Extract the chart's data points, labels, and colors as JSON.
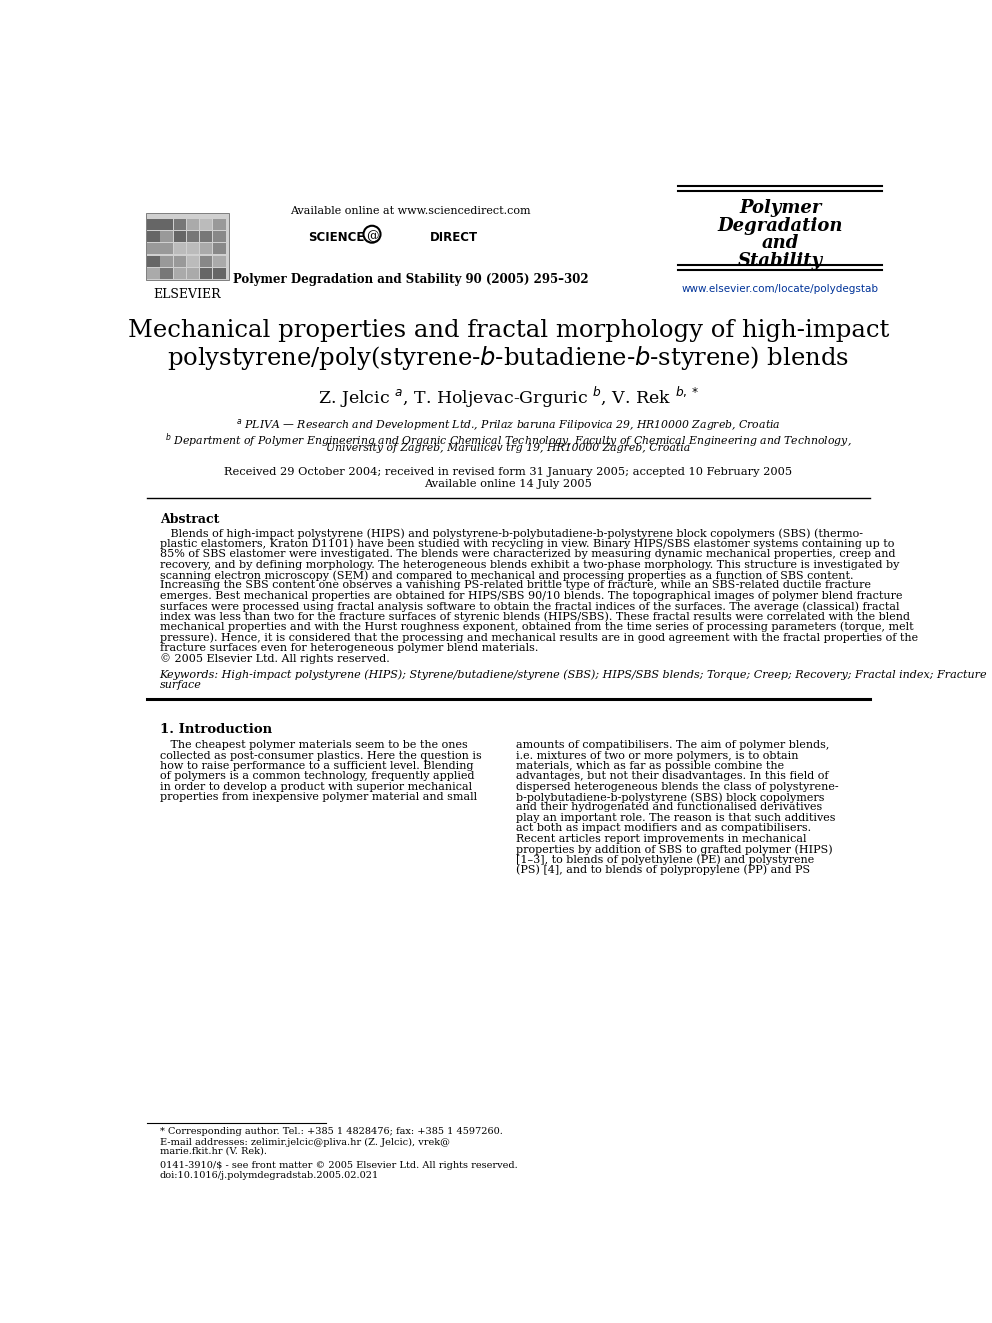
{
  "bg_color": "#ffffff",
  "header": {
    "available_online": "Available online at www.sciencedirect.com",
    "journal_line": "Polymer Degradation and Stability 90 (2005) 295–302",
    "journal_name_line1": "Polymer",
    "journal_name_line2": "Degradation",
    "journal_name_line3": "and",
    "journal_name_line4": "Stability",
    "journal_url": "www.elsevier.com/locate/polydegstab"
  },
  "title_line1": "Mechanical properties and fractal morphology of high-impact",
  "title_line2": "polystyrene/poly(styrene-b-butadiene-b-styrene) blends",
  "authors": "Z. Jelcic $^a$, T. Holjevac-Grguric $^b$, V. Rek $^{b,*}$",
  "affil_a": "$^a$ PLIVA — Research and Development Ltd., Prilaz baruna Filipovica 29, HR10000 Zagreb, Croatia",
  "affil_b_line1": "$^b$ Department of Polymer Engineering and Organic Chemical Technology, Faculty of Chemical Engineering and Technology,",
  "affil_b_line2": "University of Zagreb, Marulicev trg 19, HR10000 Zagreb, Croatia",
  "dates_line1": "Received 29 October 2004; received in revised form 31 January 2005; accepted 10 February 2005",
  "dates_line2": "Available online 14 July 2005",
  "abstract_title": "Abstract",
  "abstract_text": "   Blends of high-impact polystyrene (HIPS) and polystyrene-b-polybutadiene-b-polystyrene block copolymers (SBS) (thermo-\nplastic elastomers, Kraton D1101) have been studied with recycling in view. Binary HIPS/SBS elastomer systems containing up to\n85% of SBS elastomer were investigated. The blends were characterized by measuring dynamic mechanical properties, creep and\nrecovery, and by defining morphology. The heterogeneous blends exhibit a two-phase morphology. This structure is investigated by\nscanning electron microscopy (SEM) and compared to mechanical and processing properties as a function of SBS content.\nIncreasing the SBS content one observes a vanishing PS-related brittle type of fracture, while an SBS-related ductile fracture\nemerges. Best mechanical properties are obtained for HIPS/SBS 90/10 blends. The topographical images of polymer blend fracture\nsurfaces were processed using fractal analysis software to obtain the fractal indices of the surfaces. The average (classical) fractal\nindex was less than two for the fracture surfaces of styrenic blends (HIPS/SBS). These fractal results were correlated with the blend\nmechanical properties and with the Hurst roughness exponent, obtained from the time series of processing parameters (torque, melt\npressure). Hence, it is considered that the processing and mechanical results are in good agreement with the fractal properties of the\nfracture surfaces even for heterogeneous polymer blend materials.\n© 2005 Elsevier Ltd. All rights reserved.",
  "keywords_label": "Keywords: ",
  "keywords_text": "High-impact polystyrene (HIPS); Styrene/butadiene/styrene (SBS); HIPS/SBS blends; Torque; Creep; Recovery; Fractal index; Fracture\nsurface",
  "section1_title": "1. Introduction",
  "section1_col1": "   The cheapest polymer materials seem to be the ones\ncollected as post-consumer plastics. Here the question is\nhow to raise performance to a sufficient level. Blending\nof polymers is a common technology, frequently applied\nin order to develop a product with superior mechanical\nproperties from inexpensive polymer material and small",
  "section1_col2": "amounts of compatibilisers. The aim of polymer blends,\ni.e. mixtures of two or more polymers, is to obtain\nmaterials, which as far as possible combine the\nadvantages, but not their disadvantages. In this field of\ndispersed heterogeneous blends the class of polystyrene-\nb-polybutadiene-b-polystyrene (SBS) block copolymers\nand their hydrogenated and functionalised derivatives\nplay an important role. The reason is that such additives\nact both as impact modifiers and as compatibilisers.\nRecent articles report improvements in mechanical\nproperties by addition of SBS to grafted polymer (HIPS)\n[1–3], to blends of polyethylene (PE) and polystyrene\n(PS) [4], and to blends of polypropylene (PP) and PS",
  "footnote_corr": "* Corresponding author. Tel.: +385 1 4828476; fax: +385 1 4597260.",
  "footnote_email1": "E-mail addresses: zelimir.jelcic@pliva.hr (Z. Jelcic), vrek@",
  "footnote_email2": "marie.fkit.hr (V. Rek).",
  "footer_issn": "0141-3910/$ - see front matter © 2005 Elsevier Ltd. All rights reserved.",
  "footer_doi": "doi:10.1016/j.polymdegradstab.2005.02.021"
}
